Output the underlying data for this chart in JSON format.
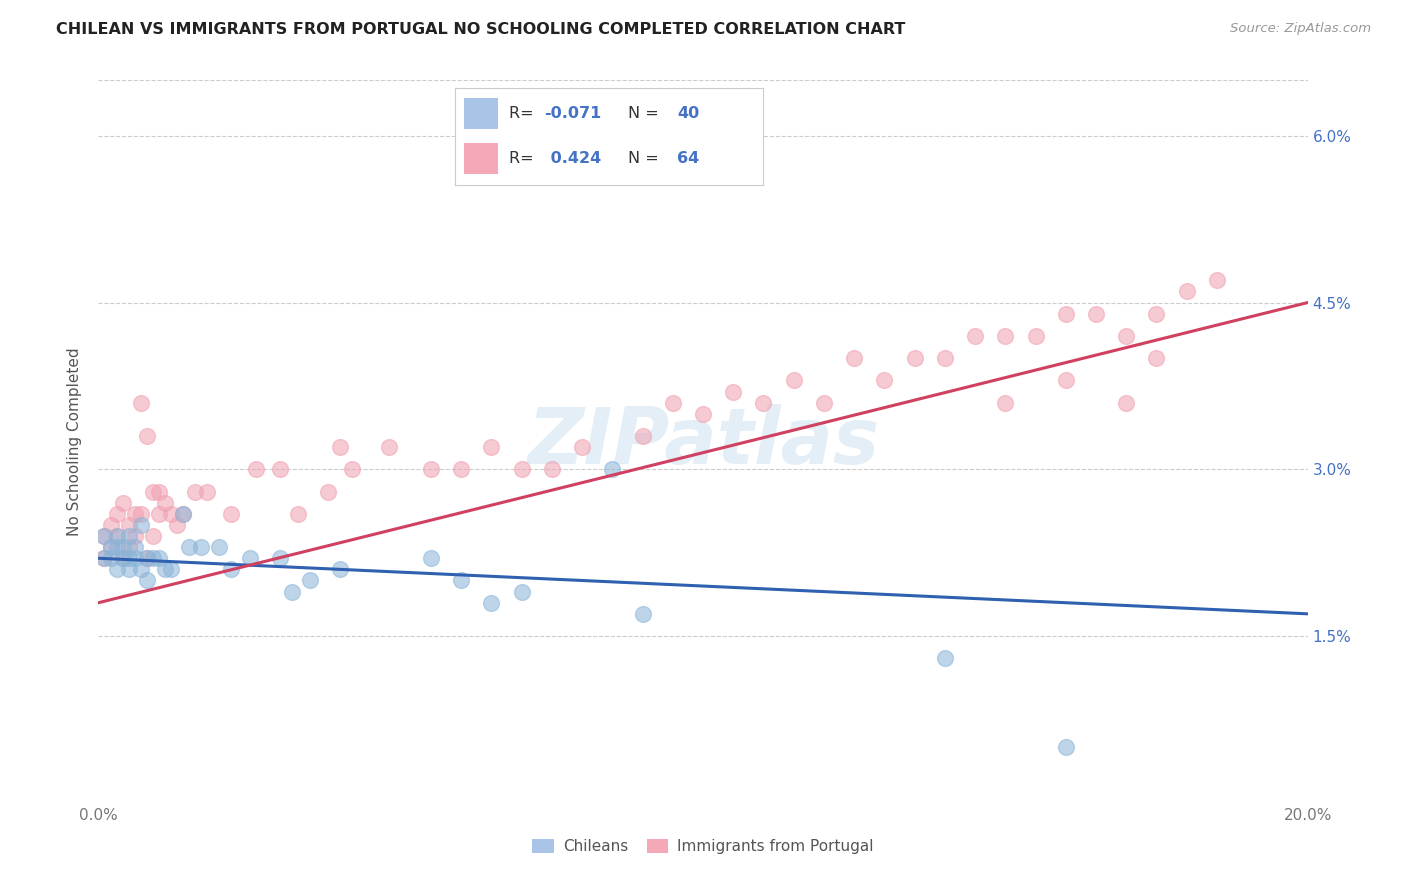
{
  "title": "CHILEAN VS IMMIGRANTS FROM PORTUGAL NO SCHOOLING COMPLETED CORRELATION CHART",
  "source": "Source: ZipAtlas.com",
  "ylabel": "No Schooling Completed",
  "xlim": [
    0.0,
    0.2
  ],
  "ylim": [
    0.0,
    0.065
  ],
  "xticks": [
    0.0,
    0.04,
    0.08,
    0.12,
    0.16,
    0.2
  ],
  "yticks": [
    0.0,
    0.015,
    0.03,
    0.045,
    0.06
  ],
  "ytick_labels": [
    "",
    "1.5%",
    "3.0%",
    "4.5%",
    "6.0%"
  ],
  "legend_bottom": [
    "Chileans",
    "Immigrants from Portugal"
  ],
  "chilean_color": "#8ab4d8",
  "portugal_color": "#f0a0b0",
  "trendline_chilean_color": "#3060b0",
  "trendline_portugal_color": "#d04060",
  "background_color": "#ffffff",
  "watermark": "ZIPatlas",
  "trendline_chilean_x0": 0.0,
  "trendline_chilean_y0": 0.022,
  "trendline_chilean_x1": 0.2,
  "trendline_chilean_y1": 0.017,
  "trendline_portugal_x0": 0.0,
  "trendline_portugal_y0": 0.018,
  "trendline_portugal_x1": 0.2,
  "trendline_portugal_y1": 0.045,
  "chilean_x": [
    0.001,
    0.001,
    0.002,
    0.002,
    0.003,
    0.003,
    0.003,
    0.004,
    0.004,
    0.005,
    0.005,
    0.005,
    0.006,
    0.006,
    0.007,
    0.007,
    0.008,
    0.008,
    0.009,
    0.01,
    0.011,
    0.012,
    0.014,
    0.015,
    0.017,
    0.02,
    0.022,
    0.025,
    0.03,
    0.032,
    0.035,
    0.04,
    0.055,
    0.06,
    0.065,
    0.07,
    0.085,
    0.09,
    0.14,
    0.16
  ],
  "chilean_y": [
    0.024,
    0.022,
    0.023,
    0.022,
    0.024,
    0.023,
    0.021,
    0.023,
    0.022,
    0.024,
    0.022,
    0.021,
    0.023,
    0.022,
    0.025,
    0.021,
    0.022,
    0.02,
    0.022,
    0.022,
    0.021,
    0.021,
    0.026,
    0.023,
    0.023,
    0.023,
    0.021,
    0.022,
    0.022,
    0.019,
    0.02,
    0.021,
    0.022,
    0.02,
    0.018,
    0.019,
    0.03,
    0.017,
    0.013,
    0.005
  ],
  "portugal_x": [
    0.001,
    0.001,
    0.002,
    0.002,
    0.003,
    0.003,
    0.004,
    0.004,
    0.005,
    0.005,
    0.006,
    0.006,
    0.007,
    0.007,
    0.008,
    0.008,
    0.009,
    0.009,
    0.01,
    0.01,
    0.011,
    0.012,
    0.013,
    0.014,
    0.016,
    0.018,
    0.022,
    0.026,
    0.03,
    0.033,
    0.038,
    0.04,
    0.042,
    0.048,
    0.055,
    0.06,
    0.065,
    0.07,
    0.075,
    0.08,
    0.09,
    0.095,
    0.1,
    0.105,
    0.11,
    0.115,
    0.12,
    0.125,
    0.13,
    0.135,
    0.14,
    0.145,
    0.15,
    0.155,
    0.16,
    0.165,
    0.17,
    0.175,
    0.18,
    0.185,
    0.15,
    0.16,
    0.17,
    0.175
  ],
  "portugal_y": [
    0.024,
    0.022,
    0.025,
    0.023,
    0.026,
    0.024,
    0.027,
    0.022,
    0.025,
    0.023,
    0.026,
    0.024,
    0.036,
    0.026,
    0.033,
    0.022,
    0.028,
    0.024,
    0.028,
    0.026,
    0.027,
    0.026,
    0.025,
    0.026,
    0.028,
    0.028,
    0.026,
    0.03,
    0.03,
    0.026,
    0.028,
    0.032,
    0.03,
    0.032,
    0.03,
    0.03,
    0.032,
    0.03,
    0.03,
    0.032,
    0.033,
    0.036,
    0.035,
    0.037,
    0.036,
    0.038,
    0.036,
    0.04,
    0.038,
    0.04,
    0.04,
    0.042,
    0.042,
    0.042,
    0.044,
    0.044,
    0.042,
    0.044,
    0.046,
    0.047,
    0.036,
    0.038,
    0.036,
    0.04
  ]
}
